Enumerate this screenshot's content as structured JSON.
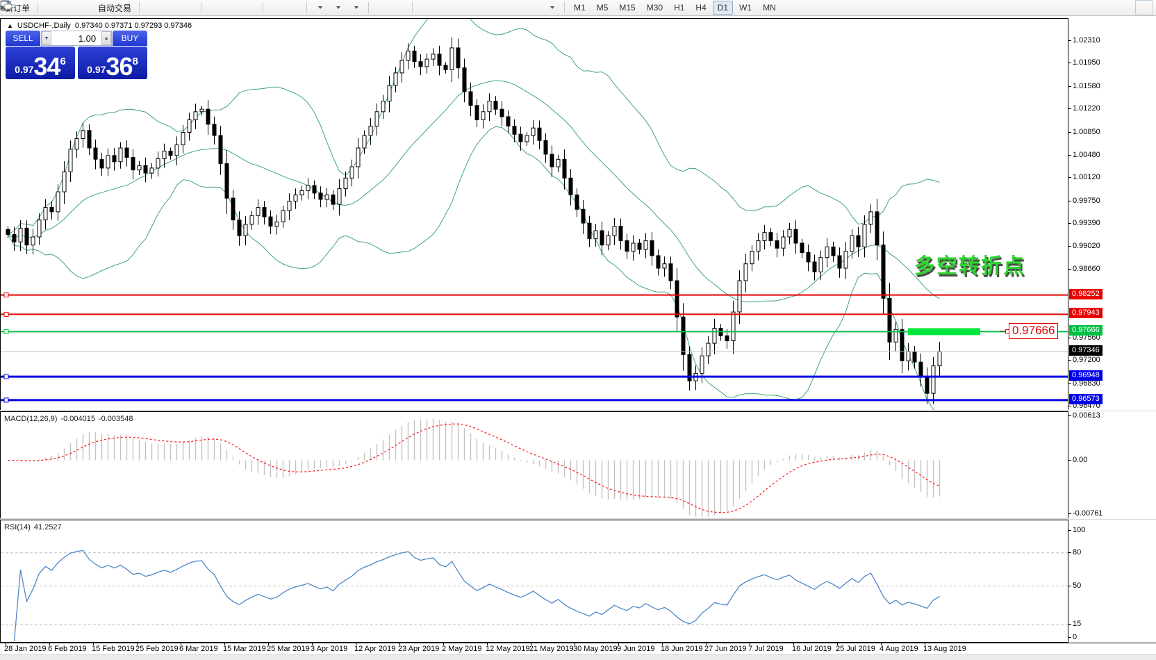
{
  "toolbar": {
    "new_order": "新订单",
    "autotrading": "自动交易",
    "timeframes": [
      "M1",
      "M5",
      "M15",
      "M30",
      "H1",
      "H4",
      "D1",
      "W1",
      "MN"
    ],
    "active_timeframe": "D1"
  },
  "chart_header": {
    "collapse": "▲",
    "symbol_period": "USDCHF-,Daily",
    "ohlc": "0.97340 0.97371 0.97293 0.97346"
  },
  "trade_panel": {
    "sell_label": "SELL",
    "buy_label": "BUY",
    "volume": "1.00",
    "sell_price_prefix": "0.97",
    "sell_price_big": "34",
    "sell_price_sup": "6",
    "buy_price_prefix": "0.97",
    "buy_price_big": "36",
    "buy_price_sup": "8"
  },
  "indicators": {
    "macd_name": "MACD(12,26,9)",
    "macd_value_main": "-0.004015",
    "macd_value_signal": "-0.003548",
    "rsi_name": "RSI(14)",
    "rsi_value": "41.2527"
  },
  "chart_data": {
    "type": "candlestick",
    "symbol": "USDCHF-",
    "period": "Daily",
    "main": {
      "type": "candlestick",
      "ylim": [
        0.96416,
        1.02665
      ],
      "first_open": 0.993,
      "closes": [
        0.9922,
        0.991,
        0.9932,
        0.9905,
        0.9918,
        0.9945,
        0.9965,
        0.9958,
        0.999,
        1.0022,
        1.0058,
        1.0075,
        1.0088,
        1.006,
        1.0042,
        1.0028,
        1.0048,
        1.0038,
        1.006,
        1.0045,
        1.0025,
        1.0032,
        1.002,
        1.0028,
        1.0043,
        1.0055,
        1.0048,
        1.0065,
        1.0085,
        1.0105,
        1.0118,
        1.0122,
        1.0098,
        1.008,
        1.0035,
        0.998,
        0.9945,
        0.992,
        0.9938,
        0.9952,
        0.9965,
        0.995,
        0.9935,
        0.9942,
        0.996,
        0.9975,
        0.9985,
        0.9992,
        1.0,
        0.9988,
        0.9978,
        0.9985,
        0.997,
        0.9995,
        1.0012,
        1.003,
        1.006,
        1.008,
        1.0095,
        1.0118,
        1.0135,
        1.016,
        1.018,
        1.02,
        1.0215,
        1.0198,
        1.019,
        1.0202,
        1.021,
        1.0192,
        1.0185,
        1.022,
        1.0188,
        1.015,
        1.0128,
        1.0105,
        1.0118,
        1.0135,
        1.0122,
        1.011,
        1.0095,
        1.0082,
        1.007,
        1.008,
        1.0092,
        1.0072,
        1.005,
        1.003,
        1.0042,
        1.0012,
        0.9985,
        0.9962,
        0.994,
        0.9915,
        0.9928,
        0.9905,
        0.992,
        0.9935,
        0.9912,
        0.9895,
        0.9908,
        0.9898,
        0.9912,
        0.9888,
        0.9868,
        0.9875,
        0.9848,
        0.979,
        0.973,
        0.9688,
        0.97,
        0.9728,
        0.9748,
        0.9772,
        0.976,
        0.9752,
        0.9798,
        0.9848,
        0.9875,
        0.9895,
        0.9912,
        0.9925,
        0.9912,
        0.99,
        0.9918,
        0.993,
        0.9908,
        0.9893,
        0.9878,
        0.9862,
        0.9885,
        0.9902,
        0.9888,
        0.9868,
        0.9895,
        0.992,
        0.9902,
        0.9938,
        0.9958,
        0.9905,
        0.982,
        0.975,
        0.977,
        0.972,
        0.9735,
        0.9718,
        0.9695,
        0.9668,
        0.9712,
        0.9735
      ],
      "y_ticks": [
        "1.02310",
        "1.01950",
        "1.01580",
        "1.01220",
        "1.00850",
        "1.00480",
        "1.00120",
        "0.99750",
        "0.99390",
        "0.99020",
        "0.98660",
        "0.97560",
        "0.97200",
        "0.96830",
        "0.96470"
      ],
      "bollinger": {
        "period": 20,
        "deviation": 2,
        "color": "#3fa37c"
      },
      "levels": [
        {
          "price": 0.98252,
          "label": "0.98252",
          "line": "#e80000",
          "width": 2,
          "badge": "#e80000",
          "fg": "#ffffff"
        },
        {
          "price": 0.97943,
          "label": "0.97943",
          "line": "#e80000",
          "width": 2,
          "badge": "#e80000",
          "fg": "#ffffff"
        },
        {
          "price": 0.97666,
          "label": "0.97666",
          "line": "#00c044",
          "width": 2,
          "badge": "#00c044",
          "fg": "#ffffff"
        },
        {
          "price": 0.97346,
          "label": "0.97346",
          "line": "#bdbdbd",
          "width": 1,
          "badge": "#000000",
          "fg": "#ffffff",
          "current": true
        },
        {
          "price": 0.96948,
          "label": "0.96948",
          "line": "#0000e8",
          "width": 3,
          "badge": "#0000e8",
          "fg": "#ffffff"
        },
        {
          "price": 0.96573,
          "label": "0.96573",
          "line": "#0000e8",
          "width": 3,
          "badge": "#0000e8",
          "fg": "#ffffff"
        }
      ],
      "highlight_segment": {
        "price": 0.97666,
        "from_bar": 144.2,
        "to_bar": 155.8,
        "color": "#00e83c",
        "thickness": 10
      },
      "price_tag": {
        "text": "0.97666",
        "color": "#e00000"
      },
      "annotation": {
        "text": "多空转折点",
        "color": "#2fd32f"
      }
    },
    "macd": {
      "type": "histogram+line",
      "fast": 12,
      "slow": 26,
      "signal": 9,
      "ylim": [
        -0.00769,
        0.00641
      ],
      "y_ticks": [
        {
          "v": 0.00613,
          "label": "0.00613"
        },
        {
          "v": 0,
          "label": "0.00"
        },
        {
          "v": -0.00761,
          "label": "-0.00761"
        }
      ],
      "hist_color": "#c2c2c2",
      "signal_color": "#ff2020"
    },
    "rsi": {
      "type": "line",
      "period": 14,
      "ylim": [
        0,
        100
      ],
      "levels": [
        80,
        50,
        15
      ],
      "y_ticks": [
        {
          "v": 100,
          "label": "100"
        },
        {
          "v": 80,
          "label": "80"
        },
        {
          "v": 50,
          "label": "50"
        },
        {
          "v": 15,
          "label": "15"
        },
        {
          "v": 0,
          "label": "0"
        }
      ],
      "color": "#4f86c8",
      "level_color": "#bcbcbc"
    },
    "x_dates": [
      "28 Jan 2019",
      "6 Feb 2019",
      "15 Feb 2019",
      "25 Feb 2019",
      "6 Mar 2019",
      "15 Mar 2019",
      "25 Mar 2019",
      "3 Apr 2019",
      "12 Apr 2019",
      "23 Apr 2019",
      "2 May 2019",
      "12 May 2019",
      "21 May 2019",
      "30 May 2019",
      "9 Jun 2019",
      "18 Jun 2019",
      "27 Jun 2019",
      "7 Jul 2019",
      "16 Jul 2019",
      "25 Jul 2019",
      "4 Aug 2019",
      "13 Aug 2019"
    ],
    "x_tick_every": 7
  }
}
